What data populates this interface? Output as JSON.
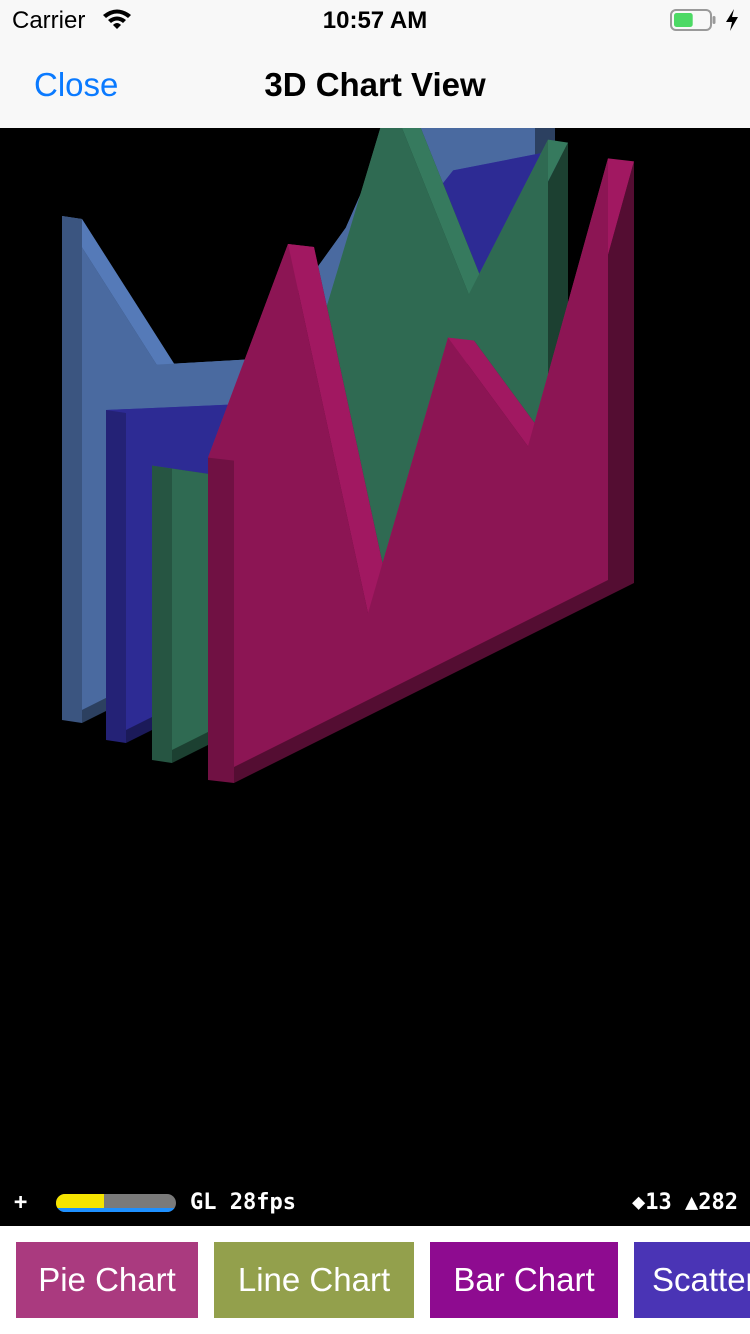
{
  "status_bar": {
    "carrier": "Carrier",
    "time": "10:57 AM",
    "battery_level": 0.55,
    "battery_color": "#4cd964",
    "charging": true
  },
  "nav_bar": {
    "close_label": "Close",
    "title": "3D Chart View",
    "tint_color": "#0a7aff"
  },
  "scene_stats": {
    "toggle": "+",
    "renderer_fps": "GL 28fps",
    "counts": "◆13 ▲282",
    "frame_budget_fraction": 0.4
  },
  "chart_data": {
    "type": "area",
    "projection": "3d",
    "series": [
      {
        "color": "#4a6aa0",
        "values": [
          72,
          44,
          38,
          50,
          74,
          64
        ]
      },
      {
        "color": "#2d2b94",
        "values": [
          50,
          44,
          38,
          50,
          60,
          56
        ]
      },
      {
        "color": "#2f6a52",
        "values": [
          46,
          38,
          50,
          85,
          48,
          66
        ]
      },
      {
        "color": "#8c1554",
        "values": [
          52,
          80,
          14,
          52,
          28,
          68
        ]
      }
    ]
  },
  "buttons": [
    {
      "label": "Pie Chart",
      "color": "#aa3a7f"
    },
    {
      "label": "Line Chart",
      "color": "#93a04c"
    },
    {
      "label": "Bar Chart",
      "color": "#8e0b90"
    },
    {
      "label": "Scatter Chart",
      "color": "#4a34b5"
    }
  ]
}
